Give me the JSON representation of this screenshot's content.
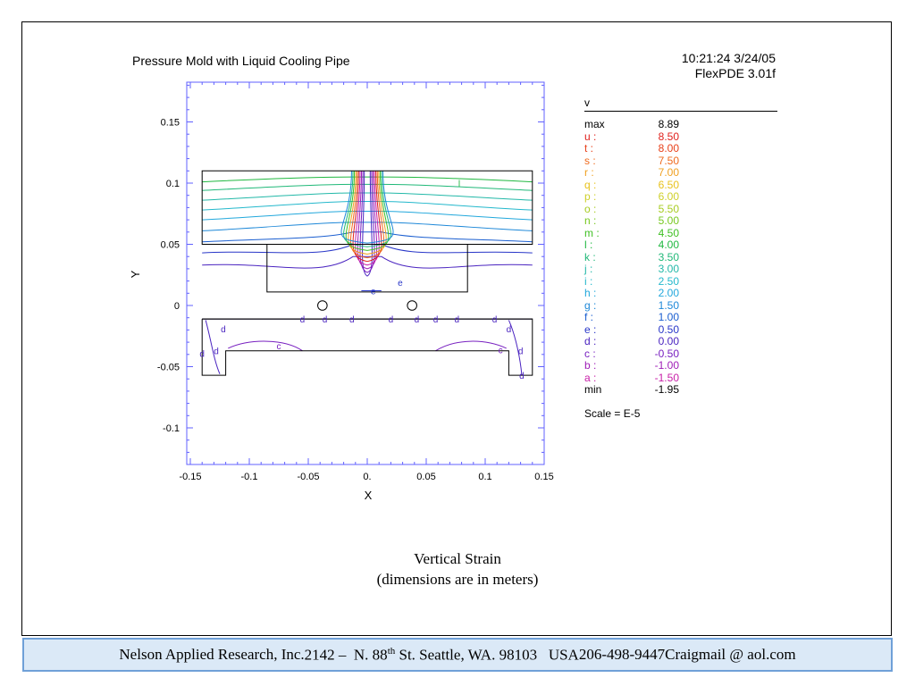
{
  "header": {
    "plot_title": "Pressure Mold with Liquid Cooling Pipe",
    "timestamp": "10:21:24 3/24/05",
    "software": "FlexPDE 3.01f"
  },
  "legend": {
    "variable": "v",
    "rows": [
      {
        "key": "max",
        "value": "8.89",
        "color": "#000000"
      },
      {
        "key": "u :",
        "value": "8.50",
        "color": "#e0201c"
      },
      {
        "key": "t :",
        "value": "8.00",
        "color": "#e8401a"
      },
      {
        "key": "s :",
        "value": "7.50",
        "color": "#ef6a1d"
      },
      {
        "key": "r :",
        "value": "7.00",
        "color": "#f0a020"
      },
      {
        "key": "q :",
        "value": "6.50",
        "color": "#e8c21c"
      },
      {
        "key": "p :",
        "value": "6.00",
        "color": "#cfd02a"
      },
      {
        "key": "o :",
        "value": "5.50",
        "color": "#a8cc22"
      },
      {
        "key": "n :",
        "value": "5.00",
        "color": "#78c820"
      },
      {
        "key": "m :",
        "value": "4.50",
        "color": "#40c024"
      },
      {
        "key": "l :",
        "value": "4.00",
        "color": "#20b840"
      },
      {
        "key": "k :",
        "value": "3.50",
        "color": "#20b878"
      },
      {
        "key": "j :",
        "value": "3.00",
        "color": "#22b8a8"
      },
      {
        "key": "i :",
        "value": "2.50",
        "color": "#24b8cc"
      },
      {
        "key": "h :",
        "value": "2.00",
        "color": "#22a8dc"
      },
      {
        "key": "g :",
        "value": "1.50",
        "color": "#1e88d8"
      },
      {
        "key": "f :",
        "value": "1.00",
        "color": "#1a5ed0"
      },
      {
        "key": "e :",
        "value": "0.50",
        "color": "#2836c8"
      },
      {
        "key": "d :",
        "value": "0.00",
        "color": "#4a24c0"
      },
      {
        "key": "c :",
        "value": "-0.50",
        "color": "#7820c0"
      },
      {
        "key": "b :",
        "value": "-1.00",
        "color": "#a020b8"
      },
      {
        "key": "a :",
        "value": "-1.50",
        "color": "#c820a8"
      },
      {
        "key": "min",
        "value": "-1.95",
        "color": "#000000"
      }
    ],
    "scale": "Scale = E-5"
  },
  "chart_data": {
    "type": "contour",
    "title": "Pressure Mold with Liquid Cooling Pipe",
    "xlabel": "X",
    "ylabel": "Y",
    "xlim": [
      -0.15,
      0.15
    ],
    "ylim": [
      -0.13,
      0.18
    ],
    "x_ticks": [
      "-0.15",
      "-0.1",
      "-0.05",
      "0.",
      "0.05",
      "0.1",
      "0.15"
    ],
    "x_tick_values": [
      -0.15,
      -0.1,
      -0.05,
      0,
      0.05,
      0.1,
      0.15
    ],
    "y_ticks": [
      "0.15",
      "0.1",
      "0.05",
      "0",
      "-0.05",
      "-0.1"
    ],
    "y_tick_values": [
      0.15,
      0.1,
      0.05,
      0,
      -0.05,
      -0.1
    ],
    "variable": "v",
    "scale": "E-5",
    "min": -1.95,
    "max": 8.89,
    "geometry": {
      "outer_top": [
        [
          -0.14,
          0.11
        ],
        [
          0.14,
          0.11
        ],
        [
          0.14,
          0.05
        ],
        [
          -0.14,
          0.05
        ]
      ],
      "inner_block": [
        [
          -0.085,
          0.05
        ],
        [
          0.085,
          0.05
        ],
        [
          0.085,
          0.011
        ],
        [
          -0.085,
          0.011
        ]
      ],
      "base_line": [
        [
          -0.14,
          -0.011
        ],
        [
          0.14,
          -0.011
        ]
      ],
      "lower_frame": [
        [
          -0.14,
          -0.011
        ],
        [
          0.14,
          -0.011
        ],
        [
          0.14,
          -0.057
        ],
        [
          0.12,
          -0.057
        ],
        [
          0.12,
          -0.037
        ],
        [
          -0.12,
          -0.037
        ],
        [
          -0.12,
          -0.057
        ],
        [
          -0.14,
          -0.057
        ],
        [
          -0.14,
          -0.011
        ]
      ],
      "pipes": [
        {
          "x": -0.038,
          "y": 0.0,
          "r": 0.004
        },
        {
          "x": 0.038,
          "y": 0.0,
          "r": 0.004
        }
      ]
    },
    "upper_contour_levels": [
      {
        "label": "l",
        "y_edge": 0.101,
        "y_center": 0.105,
        "color": "#20b840"
      },
      {
        "label": "k",
        "y_edge": 0.094,
        "y_center": 0.099,
        "color": "#20b878"
      },
      {
        "label": "j",
        "y_edge": 0.086,
        "y_center": 0.092,
        "color": "#22b8a8"
      },
      {
        "label": "i",
        "y_edge": 0.078,
        "y_center": 0.085,
        "color": "#24b8cc"
      },
      {
        "label": "h",
        "y_edge": 0.07,
        "y_center": 0.077,
        "color": "#22a8dc"
      },
      {
        "label": "g",
        "y_edge": 0.061,
        "y_center": 0.068,
        "color": "#1e88d8"
      },
      {
        "label": "f",
        "y_edge": 0.052,
        "y_center": 0.06,
        "color": "#1a5ed0"
      },
      {
        "label": "e",
        "y_edge": 0.043,
        "y_center": 0.05,
        "color": "#2836c8"
      },
      {
        "label": "d",
        "y_edge": 0.033,
        "y_center": 0.04,
        "color": "#4a24c0"
      }
    ],
    "contour_labels": [
      {
        "text": "l",
        "x": 0.078,
        "y": 0.1,
        "color": "#20b840"
      },
      {
        "text": "e",
        "x": 0.028,
        "y": 0.019,
        "color": "#2836c8"
      },
      {
        "text": "e",
        "x": 0.005,
        "y": 0.012,
        "color": "#2836c8"
      },
      {
        "text": "d",
        "x": -0.122,
        "y": -0.019,
        "color": "#4a24c0"
      },
      {
        "text": "d",
        "x": -0.128,
        "y": -0.037,
        "color": "#4a24c0"
      },
      {
        "text": "d",
        "x": -0.14,
        "y": -0.039,
        "color": "#4a24c0"
      },
      {
        "text": "c",
        "x": -0.075,
        "y": -0.033,
        "color": "#7820c0"
      },
      {
        "text": "d",
        "x": 0.12,
        "y": -0.019,
        "color": "#4a24c0"
      },
      {
        "text": "c",
        "x": 0.113,
        "y": -0.036,
        "color": "#7820c0"
      },
      {
        "text": "d",
        "x": 0.13,
        "y": -0.037,
        "color": "#4a24c0"
      },
      {
        "text": "d",
        "x": 0.131,
        "y": -0.057,
        "color": "#4a24c0"
      },
      {
        "text": "d",
        "x": -0.055,
        "y": -0.011,
        "color": "#4a24c0"
      },
      {
        "text": "d",
        "x": -0.036,
        "y": -0.011,
        "color": "#4a24c0"
      },
      {
        "text": "d",
        "x": -0.013,
        "y": -0.011,
        "color": "#4a24c0"
      },
      {
        "text": "d",
        "x": 0.02,
        "y": -0.011,
        "color": "#4a24c0"
      },
      {
        "text": "d",
        "x": 0.042,
        "y": -0.011,
        "color": "#4a24c0"
      },
      {
        "text": "d",
        "x": 0.058,
        "y": -0.011,
        "color": "#4a24c0"
      },
      {
        "text": "d",
        "x": 0.076,
        "y": -0.011,
        "color": "#4a24c0"
      },
      {
        "text": "d",
        "x": 0.108,
        "y": -0.011,
        "color": "#4a24c0"
      }
    ]
  },
  "caption": {
    "line1": "Vertical Strain",
    "line2": "(dimensions are in meters)"
  },
  "footer": {
    "company": "Nelson Applied Research, Inc.",
    "address_pre": "2142 –  N. 88",
    "address_sup": "th",
    "address_post": " St. Seattle, WA. 98103   USA",
    "phone": "206-498-9447",
    "email": "Craigmail @ aol.com"
  }
}
